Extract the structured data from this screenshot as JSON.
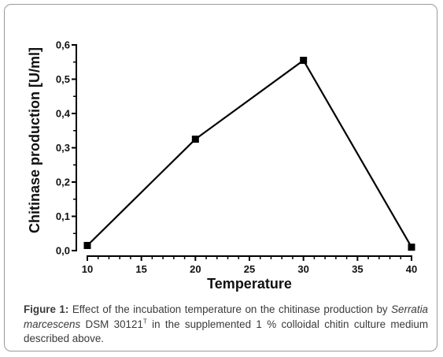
{
  "chart_data": {
    "type": "line",
    "title": "",
    "xlabel": "Temperature",
    "ylabel": "Chitinase production [U/ml]",
    "xlim": [
      10,
      40
    ],
    "ylim": [
      0.0,
      0.6
    ],
    "x_ticks": [
      "10",
      "15",
      "20",
      "25",
      "30",
      "35",
      "40"
    ],
    "y_ticks": [
      "0,0",
      "0,1",
      "0,2",
      "0,3",
      "0,4",
      "0,5",
      "0,6"
    ],
    "x_tick_values": [
      10,
      15,
      20,
      25,
      30,
      35,
      40
    ],
    "y_tick_values": [
      0.0,
      0.1,
      0.2,
      0.3,
      0.4,
      0.5,
      0.6
    ],
    "x": [
      10,
      20,
      30,
      40
    ],
    "y": [
      0.015,
      0.325,
      0.555,
      0.01
    ],
    "marker": "square",
    "line_color": "#000000",
    "grid": false,
    "legend": "none"
  },
  "caption": {
    "label": "Figure 1:",
    "text_1": " Effect of the incubation temperature on the chitinase production by ",
    "species": "Serratia marcescens",
    "text_2": " DSM 30121",
    "superscript": "T",
    "text_3": " in the supplemented 1 % colloidal chitin culture medium described above."
  }
}
